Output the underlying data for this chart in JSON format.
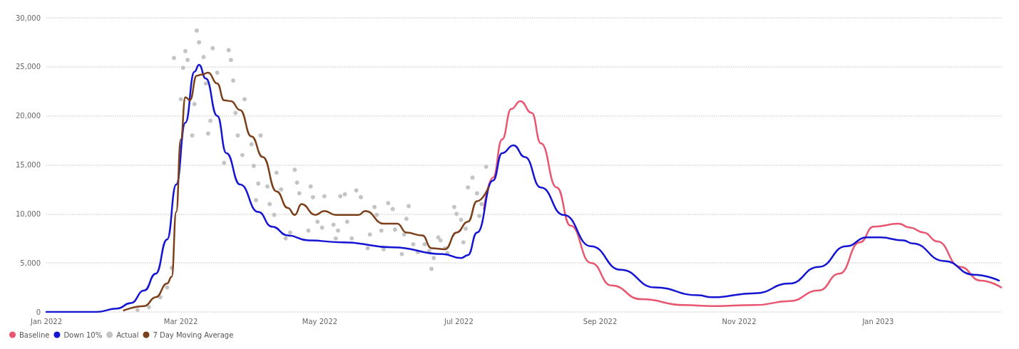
{
  "chart_data": {
    "type": "line",
    "xlim": [
      "2022-01-01",
      "2023-02-24"
    ],
    "xticks": [
      {
        "value": "2022-01-01",
        "label": "Jan 2022"
      },
      {
        "value": "2022-03-01",
        "label": "Mar 2022"
      },
      {
        "value": "2022-05-01",
        "label": "May 2022"
      },
      {
        "value": "2022-07-01",
        "label": "Jul 2022"
      },
      {
        "value": "2022-09-01",
        "label": "Sep 2022"
      },
      {
        "value": "2022-11-01",
        "label": "Nov 2022"
      },
      {
        "value": "2023-01-01",
        "label": "Jan 2023"
      }
    ],
    "ylim": [
      0,
      30000
    ],
    "yticks": [
      0,
      {
        "value": 5000,
        "label": "5,000"
      },
      {
        "value": 10000,
        "label": "10,000"
      },
      {
        "value": 15000,
        "label": "15,000"
      },
      {
        "value": 20000,
        "label": "20,000"
      },
      {
        "value": 25000,
        "label": "25,000"
      },
      {
        "value": 30000,
        "label": "30,000"
      }
    ],
    "grid": "y",
    "legend": "bottom left",
    "marker": "none",
    "line_style": "solid",
    "series": [
      {
        "name": "Baseline",
        "color": "#e8566f",
        "x": [
          "2022-07-12",
          "2022-07-16",
          "2022-07-20",
          "2022-07-24",
          "2022-07-28",
          "2022-08-02",
          "2022-08-06",
          "2022-08-13",
          "2022-08-19",
          "2022-08-28",
          "2022-09-06",
          "2022-09-19",
          "2022-10-08",
          "2022-10-20",
          "2022-11-08",
          "2022-11-23",
          "2022-12-06",
          "2022-12-15",
          "2022-12-24",
          "2022-12-30",
          "2023-01-10",
          "2023-01-15",
          "2023-01-21",
          "2023-01-27",
          "2023-02-06",
          "2023-02-15",
          "2023-02-24"
        ],
        "values": [
          10500,
          13700,
          17600,
          20700,
          21500,
          20300,
          17200,
          12700,
          8800,
          5000,
          2700,
          1300,
          700,
          600,
          700,
          1100,
          2200,
          3900,
          7100,
          8700,
          9000,
          8600,
          8100,
          7200,
          4600,
          3200,
          2500
        ]
      },
      {
        "name": "Down 10%",
        "color": "#1414d2",
        "x": [
          "2022-01-01",
          "2022-01-23",
          "2022-02-01",
          "2022-02-07",
          "2022-02-13",
          "2022-02-18",
          "2022-02-23",
          "2022-02-27",
          "2022-03-03",
          "2022-03-07",
          "2022-03-09",
          "2022-03-12",
          "2022-03-17",
          "2022-03-21",
          "2022-03-27",
          "2022-04-04",
          "2022-04-10",
          "2022-04-17",
          "2022-04-26",
          "2022-05-11",
          "2022-06-02",
          "2022-06-24",
          "2022-07-02",
          "2022-07-05",
          "2022-07-09",
          "2022-07-16",
          "2022-07-20",
          "2022-07-25",
          "2022-07-30",
          "2022-08-06",
          "2022-08-16",
          "2022-08-28",
          "2022-09-10",
          "2022-09-25",
          "2022-10-14",
          "2022-10-20",
          "2022-11-08",
          "2022-11-23",
          "2022-12-06",
          "2022-12-18",
          "2022-12-27",
          "2023-01-02",
          "2023-01-12",
          "2023-01-16",
          "2023-01-30",
          "2023-02-12",
          "2023-02-23"
        ],
        "values": [
          0,
          0,
          350,
          900,
          2200,
          3900,
          7400,
          13000,
          19300,
          24500,
          25200,
          23800,
          20000,
          16200,
          13000,
          10200,
          8700,
          7800,
          7300,
          7100,
          6600,
          5900,
          5500,
          5800,
          8100,
          13400,
          16200,
          17000,
          15800,
          12700,
          9900,
          6700,
          4300,
          2500,
          1700,
          1500,
          1900,
          2900,
          4600,
          6700,
          7600,
          7600,
          7300,
          7000,
          5200,
          3800,
          3200
        ]
      },
      {
        "name": "Actual",
        "type": "scatter",
        "marker": "circle",
        "color": "#c4c4c4",
        "x": [
          "2022-02-10",
          "2022-02-15",
          "2022-02-20",
          "2022-02-23",
          "2022-02-25",
          "2022-02-26",
          "2022-03-01",
          "2022-03-02",
          "2022-03-03",
          "2022-03-04",
          "2022-03-06",
          "2022-03-07",
          "2022-03-08",
          "2022-03-09",
          "2022-03-11",
          "2022-03-12",
          "2022-03-13",
          "2022-03-14",
          "2022-03-15",
          "2022-03-17",
          "2022-03-20",
          "2022-03-22",
          "2022-03-23",
          "2022-03-24",
          "2022-03-25",
          "2022-03-26",
          "2022-03-28",
          "2022-03-29",
          "2022-04-01",
          "2022-04-02",
          "2022-04-03",
          "2022-04-04",
          "2022-04-05",
          "2022-04-08",
          "2022-04-09",
          "2022-04-11",
          "2022-04-12",
          "2022-04-14",
          "2022-04-16",
          "2022-04-18",
          "2022-04-20",
          "2022-04-21",
          "2022-04-22",
          "2022-04-26",
          "2022-04-27",
          "2022-04-28",
          "2022-04-30",
          "2022-05-02",
          "2022-05-03",
          "2022-05-07",
          "2022-05-08",
          "2022-05-09",
          "2022-05-10",
          "2022-05-12",
          "2022-05-13",
          "2022-05-15",
          "2022-05-17",
          "2022-05-19",
          "2022-05-22",
          "2022-05-23",
          "2022-05-25",
          "2022-05-26",
          "2022-05-28",
          "2022-05-29",
          "2022-05-31",
          "2022-06-02",
          "2022-06-03",
          "2022-06-06",
          "2022-06-07",
          "2022-06-08",
          "2022-06-09",
          "2022-06-11",
          "2022-06-13",
          "2022-06-16",
          "2022-06-18",
          "2022-06-19",
          "2022-06-20",
          "2022-06-22",
          "2022-06-23",
          "2022-06-25",
          "2022-06-26",
          "2022-06-29",
          "2022-06-30",
          "2022-07-02",
          "2022-07-03",
          "2022-07-04",
          "2022-07-05",
          "2022-07-07",
          "2022-07-09",
          "2022-07-10",
          "2022-07-11",
          "2022-07-13"
        ],
        "values": [
          200,
          500,
          1500,
          2500,
          4500,
          25900,
          21700,
          24900,
          26600,
          25700,
          18000,
          21200,
          28700,
          27500,
          26000,
          23300,
          18200,
          19500,
          26900,
          24400,
          15200,
          26700,
          25700,
          23600,
          20300,
          18000,
          16000,
          21700,
          17100,
          14900,
          11400,
          13100,
          18000,
          12800,
          11000,
          9900,
          14200,
          12500,
          7500,
          8100,
          14500,
          13200,
          12100,
          8300,
          12800,
          11700,
          9200,
          8600,
          11800,
          8900,
          7500,
          8300,
          11800,
          12000,
          9200,
          7500,
          12400,
          11700,
          6500,
          7900,
          10700,
          9900,
          8300,
          6400,
          11100,
          10500,
          8400,
          5900,
          7900,
          9500,
          10800,
          6900,
          6100,
          6900,
          6200,
          4400,
          5500,
          7600,
          7300,
          6500,
          6000,
          10700,
          10000,
          9400,
          7100,
          8500,
          12700,
          13700,
          12100,
          9800,
          11000,
          14800
        ]
      },
      {
        "name": "7 Day Moving Average",
        "color": "#7b3f1a",
        "x": [
          "2022-02-04",
          "2022-02-13",
          "2022-02-18",
          "2022-02-23",
          "2022-02-25",
          "2022-02-27",
          "2022-03-01",
          "2022-03-03",
          "2022-03-05",
          "2022-03-08",
          "2022-03-10",
          "2022-03-13",
          "2022-03-17",
          "2022-03-20",
          "2022-03-23",
          "2022-03-27",
          "2022-04-01",
          "2022-04-06",
          "2022-04-12",
          "2022-04-17",
          "2022-04-20",
          "2022-04-23",
          "2022-04-29",
          "2022-05-03",
          "2022-05-08",
          "2022-05-18",
          "2022-05-21",
          "2022-05-29",
          "2022-06-04",
          "2022-06-08",
          "2022-06-15",
          "2022-06-19",
          "2022-06-25",
          "2022-06-30",
          "2022-07-05",
          "2022-07-09",
          "2022-07-14"
        ],
        "values": [
          150,
          600,
          1500,
          2900,
          3600,
          10200,
          17600,
          21900,
          21600,
          24100,
          24200,
          24400,
          23300,
          21600,
          21500,
          20600,
          17900,
          15800,
          12300,
          10600,
          9900,
          11000,
          9900,
          10300,
          9900,
          9900,
          10300,
          9000,
          9000,
          8100,
          7800,
          6500,
          6400,
          8100,
          9200,
          11300,
          12700
        ]
      }
    ]
  }
}
